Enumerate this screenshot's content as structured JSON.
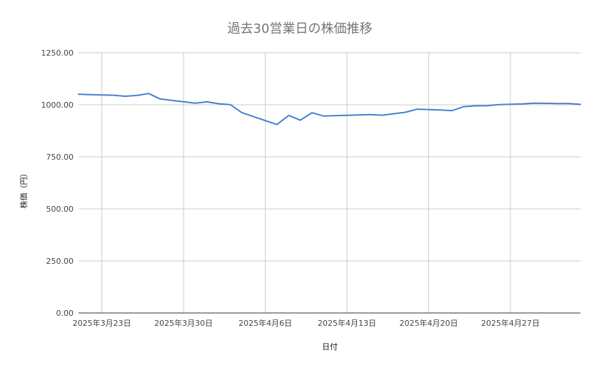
{
  "chart_data": {
    "type": "line",
    "title": "過去30営業日の株価推移",
    "xlabel": "日付",
    "ylabel": "株価（円）",
    "grid": true,
    "legend": "none",
    "ylim": [
      0,
      1250
    ],
    "y_ticks": [
      "0.00",
      "250.00",
      "500.00",
      "750.00",
      "1000.00",
      "1250.00"
    ],
    "x_ticks": [
      {
        "date": "2025-03-23",
        "label": "2025年3月23日"
      },
      {
        "date": "2025-03-30",
        "label": "2025年3月30日"
      },
      {
        "date": "2025-04-06",
        "label": "2025年4月6日"
      },
      {
        "date": "2025-04-13",
        "label": "2025年4月13日"
      },
      {
        "date": "2025-04-20",
        "label": "2025年4月20日"
      },
      {
        "date": "2025-04-27",
        "label": "2025年4月27日"
      }
    ],
    "xlim": [
      "2025-03-21",
      "2025-05-03"
    ],
    "series": [
      {
        "color": "#4a7fcf",
        "points": [
          {
            "x": "2025-03-21",
            "y": 1051
          },
          {
            "x": "2025-03-22",
            "y": 1049
          },
          {
            "x": "2025-03-24",
            "y": 1046
          },
          {
            "x": "2025-03-25",
            "y": 1041
          },
          {
            "x": "2025-03-26",
            "y": 1045
          },
          {
            "x": "2025-03-27",
            "y": 1054
          },
          {
            "x": "2025-03-28",
            "y": 1028
          },
          {
            "x": "2025-03-31",
            "y": 1008
          },
          {
            "x": "2025-04-01",
            "y": 1014
          },
          {
            "x": "2025-04-02",
            "y": 1005
          },
          {
            "x": "2025-04-03",
            "y": 1001
          },
          {
            "x": "2025-04-04",
            "y": 962
          },
          {
            "x": "2025-04-07",
            "y": 905
          },
          {
            "x": "2025-04-08",
            "y": 949
          },
          {
            "x": "2025-04-09",
            "y": 926
          },
          {
            "x": "2025-04-10",
            "y": 962
          },
          {
            "x": "2025-04-11",
            "y": 946
          },
          {
            "x": "2025-04-14",
            "y": 951
          },
          {
            "x": "2025-04-15",
            "y": 953
          },
          {
            "x": "2025-04-16",
            "y": 950
          },
          {
            "x": "2025-04-18",
            "y": 964
          },
          {
            "x": "2025-04-19",
            "y": 979
          },
          {
            "x": "2025-04-21",
            "y": 975
          },
          {
            "x": "2025-04-22",
            "y": 972
          },
          {
            "x": "2025-04-23",
            "y": 991
          },
          {
            "x": "2025-04-24",
            "y": 995
          },
          {
            "x": "2025-04-25",
            "y": 996
          },
          {
            "x": "2025-04-26",
            "y": 1001
          },
          {
            "x": "2025-04-28",
            "y": 1004
          },
          {
            "x": "2025-04-29",
            "y": 1008
          },
          {
            "x": "2025-05-01",
            "y": 1006
          },
          {
            "x": "2025-05-02",
            "y": 1006
          },
          {
            "x": "2025-05-03",
            "y": 1002
          }
        ]
      }
    ]
  }
}
